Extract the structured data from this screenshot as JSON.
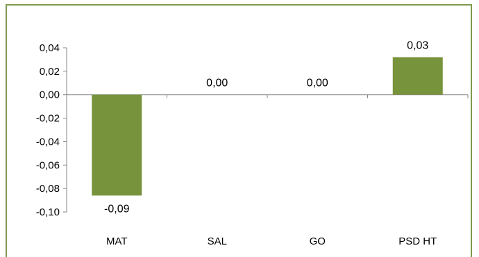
{
  "chart_data": {
    "type": "bar",
    "categories": [
      "MAT",
      "SAL",
      "GO",
      "PSD HT"
    ],
    "values": [
      -0.086,
      0.0,
      0.0,
      0.032
    ],
    "data_labels": [
      "-0,09",
      "0,00",
      "0,00",
      "0,03"
    ],
    "y_ticks": [
      0.04,
      0.02,
      0.0,
      -0.02,
      -0.04,
      -0.06,
      -0.08,
      -0.1
    ],
    "y_tick_labels": [
      "0,04",
      "0,02",
      "0,00",
      "-0,02",
      "-0,04",
      "-0,06",
      "-0,08",
      "-0,10"
    ],
    "ylim": [
      -0.1,
      0.04
    ],
    "title": "",
    "xlabel": "",
    "ylabel": "",
    "grid": false,
    "legend": "none",
    "bar_color": "#77933c",
    "frame_color": "#7f9a4e",
    "axis_color": "#868686"
  }
}
